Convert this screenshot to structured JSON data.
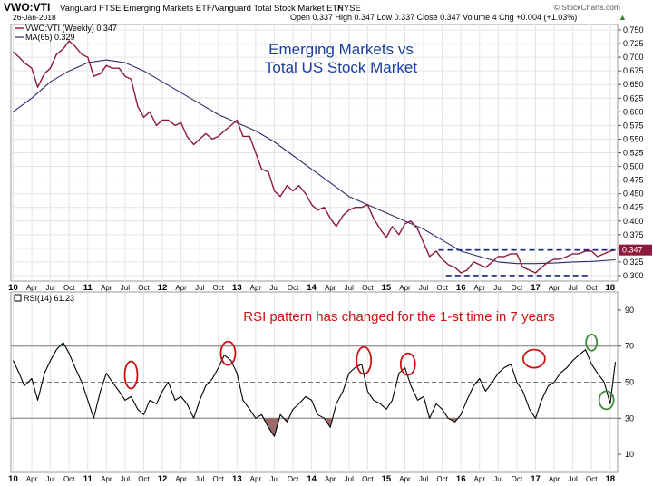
{
  "header": {
    "symbol": "VWO:VTI",
    "description": "Vanguard FTSE Emerging Markets ETF/Vanguard Total Stock Market ETF",
    "exchange": "NYSE",
    "watermark": "© StockCharts.com",
    "date": "26-Jan-2018",
    "quote": "Open 0.337  High 0.347  Low 0.337  Close 0.347  Volume 4  Chg +0.004 (+1.03%)",
    "quote_arrow": "▲"
  },
  "chart_data": [
    {
      "type": "line",
      "title_lines": [
        "Emerging Markets vs",
        "Total US Stock Market"
      ],
      "legend": [
        "VWO:VTI (Weekly) 0.347",
        "MA(65) 0.329"
      ],
      "y_ticks": [
        "0.750",
        "0.725",
        "0.700",
        "0.675",
        "0.650",
        "0.625",
        "0.600",
        "0.575",
        "0.550",
        "0.525",
        "0.500",
        "0.475",
        "0.450",
        "0.425",
        "0.400",
        "0.375",
        "0.350",
        "0.325",
        "0.300"
      ],
      "ylim": [
        0.29,
        0.76
      ],
      "x_ticks": [
        {
          "t": 2010.0,
          "label": "10"
        },
        {
          "t": 2010.25,
          "label": "Apr"
        },
        {
          "t": 2010.5,
          "label": "Jul"
        },
        {
          "t": 2010.75,
          "label": "Oct"
        },
        {
          "t": 2011.0,
          "label": "11"
        },
        {
          "t": 2011.25,
          "label": "Apr"
        },
        {
          "t": 2011.5,
          "label": "Jul"
        },
        {
          "t": 2011.75,
          "label": "Oct"
        },
        {
          "t": 2012.0,
          "label": "12"
        },
        {
          "t": 2012.25,
          "label": "Apr"
        },
        {
          "t": 2012.5,
          "label": "Jul"
        },
        {
          "t": 2012.75,
          "label": "Oct"
        },
        {
          "t": 2013.0,
          "label": "13"
        },
        {
          "t": 2013.25,
          "label": "Apr"
        },
        {
          "t": 2013.5,
          "label": "Jul"
        },
        {
          "t": 2013.75,
          "label": "Oct"
        },
        {
          "t": 2014.0,
          "label": "14"
        },
        {
          "t": 2014.25,
          "label": "Apr"
        },
        {
          "t": 2014.5,
          "label": "Jul"
        },
        {
          "t": 2014.75,
          "label": "Oct"
        },
        {
          "t": 2015.0,
          "label": "15"
        },
        {
          "t": 2015.25,
          "label": "Apr"
        },
        {
          "t": 2015.5,
          "label": "Jul"
        },
        {
          "t": 2015.75,
          "label": "Oct"
        },
        {
          "t": 2016.0,
          "label": "16"
        },
        {
          "t": 2016.25,
          "label": "Apr"
        },
        {
          "t": 2016.5,
          "label": "Jul"
        },
        {
          "t": 2016.75,
          "label": "Oct"
        },
        {
          "t": 2017.0,
          "label": "17"
        },
        {
          "t": 2017.25,
          "label": "Apr"
        },
        {
          "t": 2017.5,
          "label": "Jul"
        },
        {
          "t": 2017.75,
          "label": "Oct"
        },
        {
          "t": 2018.0,
          "label": "18"
        }
      ],
      "xlim": [
        2009.97,
        2018.1
      ],
      "series": [
        {
          "name": "VWO:VTI (Weekly)",
          "color": "#8b1a3c",
          "x": [
            2010.0,
            2010.08,
            2010.15,
            2010.25,
            2010.33,
            2010.42,
            2010.5,
            2010.58,
            2010.67,
            2010.75,
            2010.83,
            2010.92,
            2011.0,
            2011.08,
            2011.17,
            2011.25,
            2011.33,
            2011.42,
            2011.5,
            2011.58,
            2011.67,
            2011.75,
            2011.83,
            2011.92,
            2012.0,
            2012.08,
            2012.17,
            2012.25,
            2012.33,
            2012.42,
            2012.5,
            2012.58,
            2012.67,
            2012.75,
            2012.83,
            2012.92,
            2013.0,
            2013.08,
            2013.17,
            2013.25,
            2013.33,
            2013.42,
            2013.5,
            2013.58,
            2013.67,
            2013.75,
            2013.83,
            2013.92,
            2014.0,
            2014.08,
            2014.17,
            2014.25,
            2014.33,
            2014.42,
            2014.5,
            2014.58,
            2014.67,
            2014.75,
            2014.83,
            2014.92,
            2015.0,
            2015.08,
            2015.17,
            2015.25,
            2015.33,
            2015.42,
            2015.5,
            2015.58,
            2015.67,
            2015.75,
            2015.83,
            2015.92,
            2016.0,
            2016.08,
            2016.17,
            2016.25,
            2016.33,
            2016.42,
            2016.5,
            2016.58,
            2016.67,
            2016.75,
            2016.83,
            2016.92,
            2017.0,
            2017.08,
            2017.17,
            2017.25,
            2017.33,
            2017.42,
            2017.5,
            2017.58,
            2017.67,
            2017.75,
            2017.83,
            2017.92,
            2018.0,
            2018.07
          ],
          "values": [
            0.71,
            0.7,
            0.69,
            0.68,
            0.645,
            0.67,
            0.68,
            0.705,
            0.715,
            0.73,
            0.72,
            0.705,
            0.7,
            0.665,
            0.67,
            0.685,
            0.68,
            0.68,
            0.665,
            0.66,
            0.61,
            0.59,
            0.6,
            0.575,
            0.585,
            0.585,
            0.575,
            0.58,
            0.555,
            0.54,
            0.55,
            0.56,
            0.55,
            0.555,
            0.565,
            0.575,
            0.585,
            0.555,
            0.555,
            0.525,
            0.495,
            0.49,
            0.455,
            0.445,
            0.465,
            0.455,
            0.465,
            0.45,
            0.43,
            0.42,
            0.425,
            0.405,
            0.39,
            0.41,
            0.42,
            0.425,
            0.425,
            0.43,
            0.405,
            0.385,
            0.37,
            0.39,
            0.375,
            0.395,
            0.4,
            0.385,
            0.36,
            0.335,
            0.345,
            0.33,
            0.32,
            0.315,
            0.305,
            0.31,
            0.325,
            0.32,
            0.315,
            0.325,
            0.335,
            0.335,
            0.34,
            0.34,
            0.315,
            0.31,
            0.305,
            0.315,
            0.325,
            0.33,
            0.33,
            0.335,
            0.34,
            0.34,
            0.345,
            0.345,
            0.335,
            0.34,
            0.345,
            0.347
          ]
        },
        {
          "name": "MA(65)",
          "color": "#2c2c6e",
          "x": [
            2010.0,
            2010.25,
            2010.5,
            2010.75,
            2011.0,
            2011.25,
            2011.5,
            2011.75,
            2012.0,
            2012.25,
            2012.5,
            2012.75,
            2013.0,
            2013.25,
            2013.5,
            2013.75,
            2014.0,
            2014.25,
            2014.5,
            2014.75,
            2015.0,
            2015.25,
            2015.5,
            2015.75,
            2016.0,
            2016.25,
            2016.5,
            2016.75,
            2017.0,
            2017.25,
            2017.5,
            2017.75,
            2018.07
          ],
          "values": [
            0.6,
            0.625,
            0.655,
            0.675,
            0.69,
            0.695,
            0.69,
            0.675,
            0.655,
            0.635,
            0.615,
            0.595,
            0.58,
            0.565,
            0.545,
            0.52,
            0.495,
            0.47,
            0.445,
            0.43,
            0.415,
            0.4,
            0.385,
            0.365,
            0.345,
            0.335,
            0.325,
            0.322,
            0.322,
            0.323,
            0.325,
            0.326,
            0.329
          ]
        }
      ],
      "reference_lines": [
        {
          "value": 0.347,
          "from": 2015.7,
          "to": 2018.07,
          "style": "dashed",
          "color": "#1a237e"
        },
        {
          "value": 0.3,
          "from": 2015.8,
          "to": 2017.7,
          "style": "dashed",
          "color": "#1a237e"
        }
      ],
      "last_price_label": "0.347"
    },
    {
      "type": "line",
      "title": "RSI pattern has changed for the 1-st time in 7 years",
      "legend": [
        "RSI(14) 61.23"
      ],
      "y_ticks": [
        "90",
        "70",
        "50",
        "30",
        "10"
      ],
      "ylim": [
        0,
        100
      ],
      "levels": [
        70,
        50,
        30
      ],
      "series": [
        {
          "name": "RSI(14)",
          "color": "#000000",
          "x": [
            2010.0,
            2010.08,
            2010.15,
            2010.25,
            2010.33,
            2010.42,
            2010.5,
            2010.58,
            2010.67,
            2010.75,
            2010.83,
            2010.92,
            2011.0,
            2011.08,
            2011.17,
            2011.25,
            2011.33,
            2011.42,
            2011.5,
            2011.58,
            2011.67,
            2011.75,
            2011.83,
            2011.92,
            2012.0,
            2012.08,
            2012.17,
            2012.25,
            2012.33,
            2012.42,
            2012.5,
            2012.58,
            2012.67,
            2012.75,
            2012.83,
            2012.92,
            2013.0,
            2013.08,
            2013.17,
            2013.25,
            2013.33,
            2013.42,
            2013.5,
            2013.58,
            2013.67,
            2013.75,
            2013.83,
            2013.92,
            2014.0,
            2014.08,
            2014.17,
            2014.25,
            2014.33,
            2014.42,
            2014.5,
            2014.58,
            2014.67,
            2014.75,
            2014.83,
            2014.92,
            2015.0,
            2015.08,
            2015.17,
            2015.25,
            2015.33,
            2015.42,
            2015.5,
            2015.58,
            2015.67,
            2015.75,
            2015.83,
            2015.92,
            2016.0,
            2016.08,
            2016.17,
            2016.25,
            2016.33,
            2016.42,
            2016.5,
            2016.58,
            2016.67,
            2016.75,
            2016.83,
            2016.92,
            2017.0,
            2017.08,
            2017.17,
            2017.25,
            2017.33,
            2017.42,
            2017.5,
            2017.58,
            2017.67,
            2017.75,
            2017.83,
            2017.92,
            2018.0,
            2018.07
          ],
          "values": [
            62,
            55,
            48,
            52,
            40,
            55,
            62,
            68,
            72,
            66,
            58,
            50,
            40,
            30,
            45,
            55,
            50,
            45,
            40,
            42,
            35,
            32,
            40,
            38,
            45,
            50,
            40,
            42,
            38,
            30,
            40,
            48,
            52,
            58,
            65,
            62,
            55,
            40,
            35,
            30,
            32,
            25,
            20,
            32,
            28,
            35,
            38,
            42,
            40,
            32,
            30,
            25,
            38,
            45,
            55,
            58,
            60,
            45,
            40,
            38,
            35,
            40,
            55,
            58,
            48,
            40,
            42,
            30,
            38,
            35,
            30,
            28,
            32,
            40,
            48,
            52,
            45,
            50,
            55,
            58,
            60,
            50,
            45,
            35,
            30,
            40,
            48,
            50,
            55,
            58,
            62,
            65,
            68,
            60,
            55,
            50,
            38,
            61.23
          ]
        }
      ]
    }
  ],
  "colors": {
    "price_line": "#8b1a3c",
    "ma_line": "#2c2c6e",
    "title_text": "#1a3fa0",
    "annotation_text": "#cc1111",
    "red_marker": "#cc1111",
    "green_marker": "#3a8a3a",
    "oversold_fill": "#9a6a6a",
    "overbought_fill": "#3b8a3b"
  }
}
